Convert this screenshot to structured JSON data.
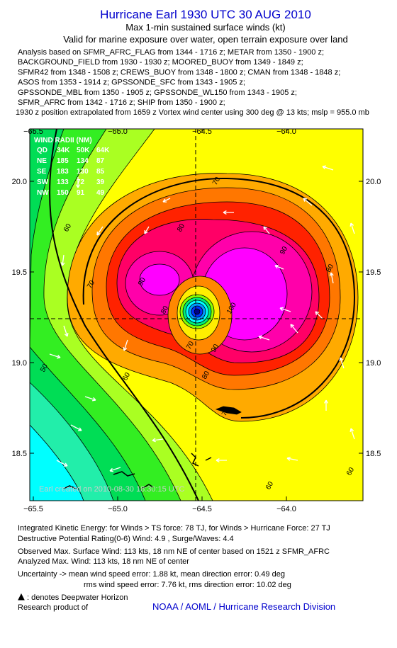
{
  "header": {
    "title": "Hurricane Earl 1930 UTC 30 AUG 2010",
    "subtitle": "Max 1-min sustained surface winds (kt)",
    "validity": "Valid for marine exposure over water, open terrain exposure over land",
    "sources": [
      "Analysis based on SFMR_AFRC_FLAG from 1344 - 1716 z; METAR from 1350 - 1900 z;",
      "BACKGROUND_FIELD from 1930 - 1930 z; MOORED_BUOY from 1349 - 1849 z;",
      "SFMR42 from 1348 - 1508 z; CREWS_BUOY from 1348 - 1800 z; CMAN from 1348 - 1848 z;",
      "ASOS from 1353 - 1914 z; GPSSONDE_SFC from 1343 - 1905 z;",
      "GPSSONDE_MBL from 1350 - 1905 z; GPSSONDE_WL150 from 1343 - 1905 z;",
      "SFMR_AFRC from 1342 - 1716 z; SHIP from 1350 - 1900 z;"
    ],
    "position_note": "1930 z position extrapolated from 1659 z Vortex wind center using 300 deg @ 13 kts; mslp = 955.0 mb"
  },
  "map": {
    "lon_labels": [
      "−65.5",
      "−65.0",
      "−64.5",
      "−64.0"
    ],
    "lat_labels": [
      "20.0",
      "19.5",
      "19.0",
      "18.5"
    ],
    "wind_radii": {
      "title": "WIND RADII (NM)",
      "columns": [
        "QD",
        "34K",
        "50K",
        "64K"
      ],
      "rows": [
        [
          "NE",
          "185",
          "134",
          "87"
        ],
        [
          "SE",
          "183",
          "130",
          "85"
        ],
        [
          "SW",
          "133",
          "72",
          "39"
        ],
        [
          "NW",
          "150",
          "91",
          "49"
        ]
      ]
    },
    "contour_labels": [
      "70",
      "60",
      "80",
      "90",
      "80",
      "70",
      "90",
      "80",
      "100",
      "70",
      "90",
      "80",
      "50",
      "60",
      "70",
      "60",
      "60"
    ],
    "credit": "Earl   created on 2010-08-30 18:30:15 UTC"
  },
  "footer": {
    "ike": "Integrated Kinetic Energy:  for Winds > TS force: 78 TJ,  for Winds > Hurricane Force: 27 TJ",
    "dpr": "Destructive Potential Rating(0-6)  Wind: 4.9 , Surge/Waves: 4.4",
    "observed": "Observed Max. Surface Wind: 113 kts, 18 nm NE of center based on 1521 z SFMR_AFRC",
    "analyzed": "Analyzed Max. Wind: 113 kts, 18 nm NE of center",
    "uncertainty_mean": "Uncertainty -> mean wind speed error: 1.88 kt,   mean direction error: 0.49 deg",
    "uncertainty_rms": "rms wind speed error: 7.76 kt,   rms direction error: 10.02 deg",
    "deepwater": ": denotes Deepwater Horizon",
    "research": "Research product of",
    "org": "NOAA / AOML / Hurricane Research Division"
  }
}
